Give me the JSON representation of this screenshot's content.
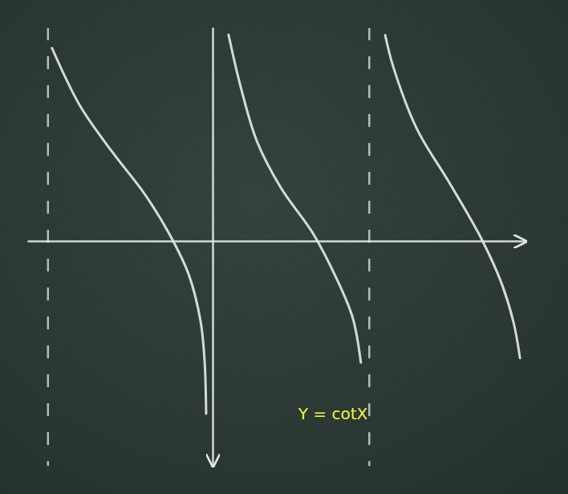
{
  "chart_data": {
    "type": "line",
    "title": "Y = cotX",
    "color": "#e4e8e4",
    "xlim": [
      -3.71,
      6.29
    ],
    "ylim": [
      -5.09,
      4.82
    ],
    "tick_labels": false,
    "grid": false,
    "asymptotes": [
      -3.31,
      3.15
    ],
    "series": [
      {
        "x": [
          -3.23,
          -2.66,
          -2.02,
          -1.37,
          -0.89,
          -0.48,
          -0.24,
          -0.16,
          -0.13
        ],
        "values": [
          4.37,
          3.05,
          2.02,
          1.07,
          0.2,
          -0.76,
          -1.83,
          -2.74,
          -3.91
        ]
      },
      {
        "x": [
          0.32,
          0.56,
          0.89,
          1.37,
          2.02,
          2.5,
          2.82,
          2.98
        ],
        "values": [
          4.67,
          3.51,
          2.26,
          1.21,
          0.17,
          -0.87,
          -1.75,
          -2.75
        ]
      },
      {
        "x": [
          3.47,
          3.63,
          4.11,
          4.76,
          5.4,
          5.81,
          6.05,
          6.18
        ],
        "values": [
          4.66,
          3.95,
          2.53,
          1.32,
          0.06,
          -0.96,
          -1.84,
          -2.65
        ]
      }
    ]
  }
}
